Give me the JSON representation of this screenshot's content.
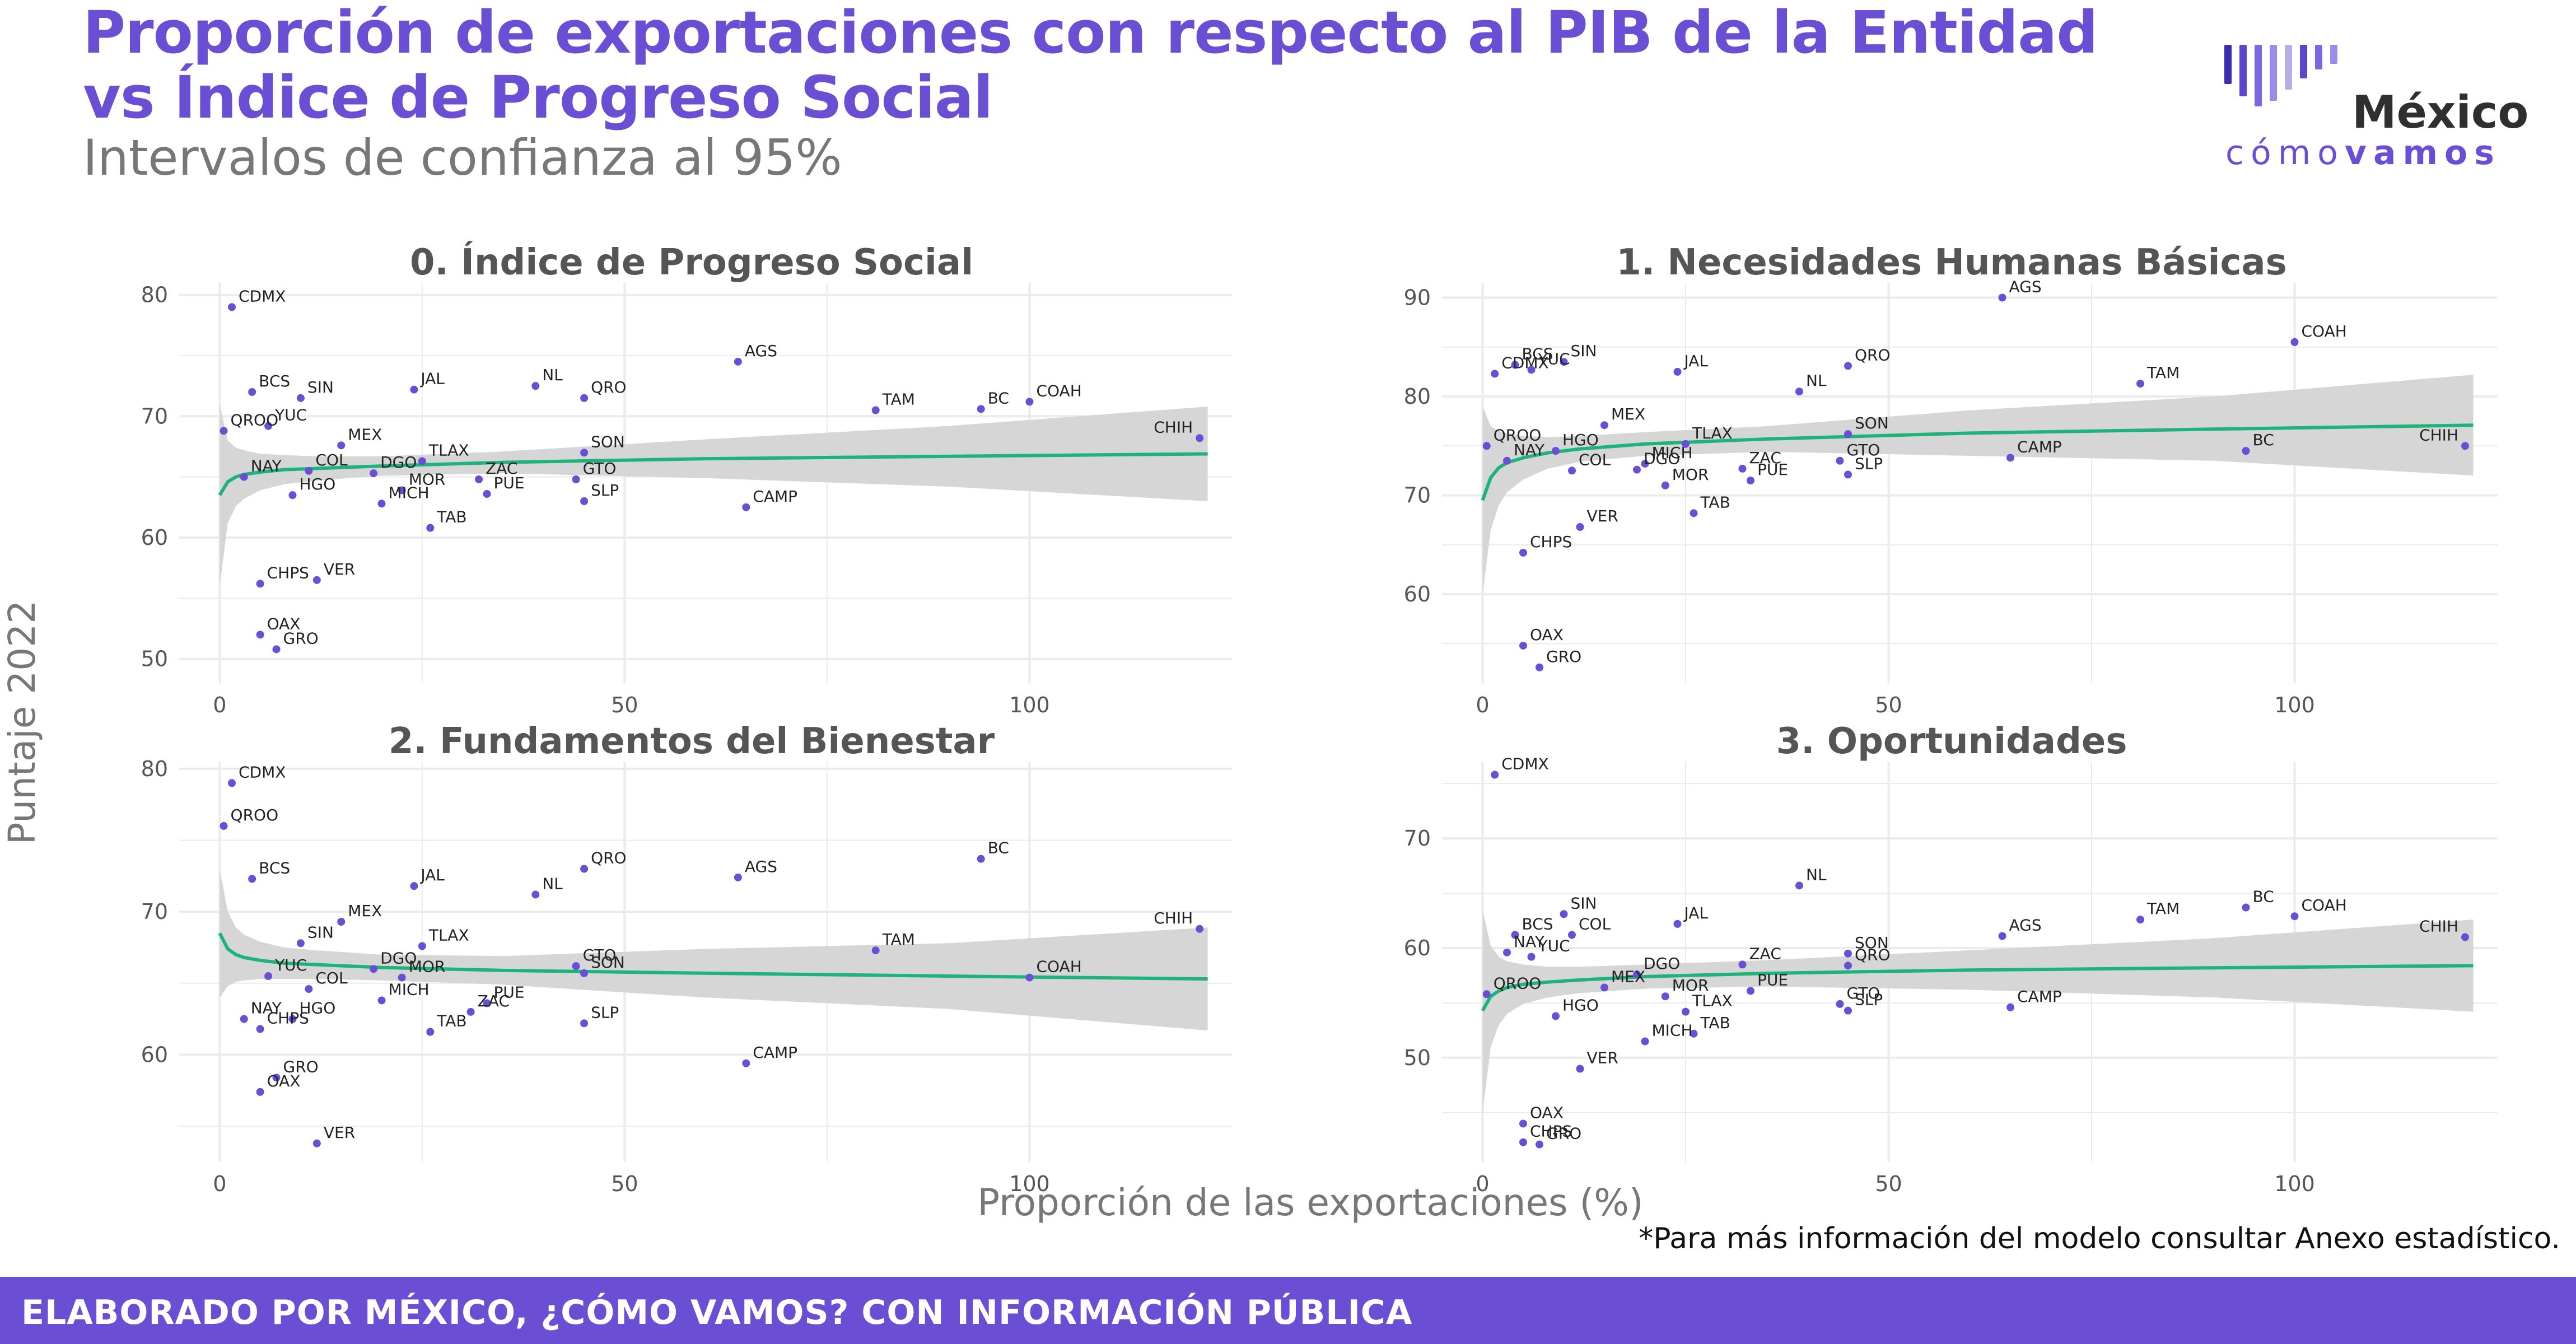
{
  "header": {
    "title_line1": "Proporción de exportaciones con respecto al PIB de la Entidad",
    "title_line2": "vs Índice de Progreso Social",
    "subtitle": "Intervalos de confianza al 95%"
  },
  "logo": {
    "wordmark": "México",
    "sub_light": "cómo",
    "sub_bold": "vamos",
    "colors": [
      "#3b2db0",
      "#5a46cf",
      "#7b67e0",
      "#9c8cea",
      "#b8ace9",
      "#5a46cf",
      "#7b67e0",
      "#9c8cea"
    ]
  },
  "note": "*Para más información del modelo consultar Anexo estadístico.",
  "footer": {
    "text": "ELABORADO POR MÉXICO, ¿CÓMO VAMOS? CON INFORMACIÓN PÚBLICA",
    "color": "#6a4fd4"
  },
  "colors": {
    "point": "#6a4fd4",
    "line": "#1db37a",
    "band": "#d4d4d4",
    "grid": "#ebebeb",
    "title": "#555555",
    "axis_text": "#555555"
  },
  "chart_data": {
    "type": "scatter",
    "xlabel": "Proporción de las exportaciones (%)",
    "ylabel": "Puntaje 2022",
    "panels": [
      {
        "title": "0. Índice de Progreso Social",
        "ylim": [
          48,
          81
        ],
        "xlim": [
          -5,
          125
        ],
        "yticks": [
          50,
          60,
          70,
          80
        ],
        "xticks": [
          0,
          50,
          100
        ],
        "points": [
          {
            "label": "CDMX",
            "x": 1.5,
            "y": 79
          },
          {
            "label": "AGS",
            "x": 64,
            "y": 74.5
          },
          {
            "label": "BCS",
            "x": 4,
            "y": 72
          },
          {
            "label": "SIN",
            "x": 10,
            "y": 71.5
          },
          {
            "label": "JAL",
            "x": 24,
            "y": 72.2
          },
          {
            "label": "NL",
            "x": 39,
            "y": 72.5
          },
          {
            "label": "QRO",
            "x": 45,
            "y": 71.5
          },
          {
            "label": "TAM",
            "x": 81,
            "y": 70.5
          },
          {
            "label": "BC",
            "x": 94,
            "y": 70.6
          },
          {
            "label": "COAH",
            "x": 100,
            "y": 71.2
          },
          {
            "label": "YUC",
            "x": 6,
            "y": 69.2
          },
          {
            "label": "QROO",
            "x": 0.5,
            "y": 68.8
          },
          {
            "label": "MEX",
            "x": 15,
            "y": 67.6
          },
          {
            "label": "CHIH",
            "x": 121,
            "y": 68.2
          },
          {
            "label": "SON",
            "x": 45,
            "y": 67
          },
          {
            "label": "TLAX",
            "x": 25,
            "y": 66.3
          },
          {
            "label": "ZAC",
            "x": 32,
            "y": 64.8
          },
          {
            "label": "COL",
            "x": 11,
            "y": 65.5
          },
          {
            "label": "DGO",
            "x": 19,
            "y": 65.3
          },
          {
            "label": "NAY",
            "x": 3,
            "y": 65
          },
          {
            "label": "MOR",
            "x": 22.5,
            "y": 63.9
          },
          {
            "label": "GTO",
            "x": 44,
            "y": 64.8
          },
          {
            "label": "HGO",
            "x": 9,
            "y": 63.5
          },
          {
            "label": "PUE",
            "x": 33,
            "y": 63.6
          },
          {
            "label": "MICH",
            "x": 20,
            "y": 62.8
          },
          {
            "label": "SLP",
            "x": 45,
            "y": 63
          },
          {
            "label": "CAMP",
            "x": 65,
            "y": 62.5
          },
          {
            "label": "TAB",
            "x": 26,
            "y": 60.8
          },
          {
            "label": "CHPS",
            "x": 5,
            "y": 56.2
          },
          {
            "label": "VER",
            "x": 12,
            "y": 56.5
          },
          {
            "label": "OAX",
            "x": 5,
            "y": 52
          },
          {
            "label": "GRO",
            "x": 7,
            "y": 50.8
          }
        ],
        "fit": {
          "x": [
            0,
            1,
            2,
            3,
            5,
            8,
            12,
            20,
            35,
            60,
            90,
            122
          ],
          "y": [
            63.5,
            64.6,
            65.0,
            65.2,
            65.4,
            65.6,
            65.7,
            65.9,
            66.2,
            66.5,
            66.7,
            66.9
          ],
          "lo": [
            56.0,
            61.2,
            62.6,
            63.2,
            63.9,
            64.4,
            64.7,
            65.1,
            65.3,
            64.9,
            64.2,
            63.0
          ],
          "hi": [
            71.0,
            68.0,
            67.4,
            67.2,
            66.9,
            66.8,
            66.7,
            66.7,
            67.1,
            68.1,
            69.2,
            70.8
          ]
        }
      },
      {
        "title": "1. Necesidades Humanas Básicas",
        "ylim": [
          51,
          91.5
        ],
        "xlim": [
          -5,
          125
        ],
        "yticks": [
          60,
          70,
          80,
          90
        ],
        "xticks": [
          0,
          50,
          100
        ],
        "points": [
          {
            "label": "AGS",
            "x": 64,
            "y": 90
          },
          {
            "label": "COAH",
            "x": 100,
            "y": 85.5
          },
          {
            "label": "BCS",
            "x": 4,
            "y": 83.2
          },
          {
            "label": "SIN",
            "x": 10,
            "y": 83.5
          },
          {
            "label": "YUC",
            "x": 6,
            "y": 82.7
          },
          {
            "label": "CDMX",
            "x": 1.5,
            "y": 82.3
          },
          {
            "label": "JAL",
            "x": 24,
            "y": 82.5
          },
          {
            "label": "QRO",
            "x": 45,
            "y": 83.1
          },
          {
            "label": "NL",
            "x": 39,
            "y": 80.5
          },
          {
            "label": "TAM",
            "x": 81,
            "y": 81.3
          },
          {
            "label": "MEX",
            "x": 15,
            "y": 77.1
          },
          {
            "label": "QROO",
            "x": 0.5,
            "y": 75
          },
          {
            "label": "SON",
            "x": 45,
            "y": 76.2
          },
          {
            "label": "CHIH",
            "x": 121,
            "y": 75
          },
          {
            "label": "TLAX",
            "x": 25,
            "y": 75.2
          },
          {
            "label": "HGO",
            "x": 9,
            "y": 74.5
          },
          {
            "label": "MICH",
            "x": 20,
            "y": 73.2
          },
          {
            "label": "NAY",
            "x": 3,
            "y": 73.5
          },
          {
            "label": "GTO",
            "x": 44,
            "y": 73.5
          },
          {
            "label": "BC",
            "x": 94,
            "y": 74.5
          },
          {
            "label": "ZAC",
            "x": 32,
            "y": 72.7
          },
          {
            "label": "DGO",
            "x": 19,
            "y": 72.6
          },
          {
            "label": "CAMP",
            "x": 65,
            "y": 73.8
          },
          {
            "label": "COL",
            "x": 11,
            "y": 72.5
          },
          {
            "label": "SLP",
            "x": 45,
            "y": 72.1
          },
          {
            "label": "MOR",
            "x": 22.5,
            "y": 71
          },
          {
            "label": "PUE",
            "x": 33,
            "y": 71.5
          },
          {
            "label": "TAB",
            "x": 26,
            "y": 68.2
          },
          {
            "label": "VER",
            "x": 12,
            "y": 66.8
          },
          {
            "label": "CHPS",
            "x": 5,
            "y": 64.2
          },
          {
            "label": "OAX",
            "x": 5,
            "y": 54.8
          },
          {
            "label": "GRO",
            "x": 7,
            "y": 52.6
          }
        ],
        "fit": {
          "x": [
            0,
            1,
            2,
            3,
            5,
            8,
            12,
            20,
            35,
            60,
            90,
            122
          ],
          "y": [
            69.5,
            71.8,
            72.8,
            73.3,
            73.8,
            74.3,
            74.7,
            75.2,
            75.7,
            76.3,
            76.7,
            77.1
          ],
          "lo": [
            60.0,
            66.5,
            69.0,
            70.3,
            71.6,
            72.7,
            73.4,
            74.0,
            74.4,
            74.0,
            73.5,
            72.0
          ],
          "hi": [
            79.0,
            77.0,
            76.5,
            76.3,
            76.0,
            75.9,
            76.0,
            76.4,
            77.0,
            78.6,
            80.0,
            82.2
          ]
        }
      },
      {
        "title": "2. Fundamentos del Bienestar",
        "ylim": [
          52.5,
          80.5
        ],
        "xlim": [
          -5,
          125
        ],
        "yticks": [
          60,
          70,
          80
        ],
        "xticks": [
          0,
          50,
          100
        ],
        "points": [
          {
            "label": "CDMX",
            "x": 1.5,
            "y": 79
          },
          {
            "label": "QROO",
            "x": 0.5,
            "y": 76
          },
          {
            "label": "BC",
            "x": 94,
            "y": 73.7
          },
          {
            "label": "QRO",
            "x": 45,
            "y": 73
          },
          {
            "label": "BCS",
            "x": 4,
            "y": 72.3
          },
          {
            "label": "AGS",
            "x": 64,
            "y": 72.4
          },
          {
            "label": "JAL",
            "x": 24,
            "y": 71.8
          },
          {
            "label": "NL",
            "x": 39,
            "y": 71.2
          },
          {
            "label": "MEX",
            "x": 15,
            "y": 69.3
          },
          {
            "label": "CHIH",
            "x": 121,
            "y": 68.8
          },
          {
            "label": "TLAX",
            "x": 25,
            "y": 67.6
          },
          {
            "label": "SIN",
            "x": 10,
            "y": 67.8
          },
          {
            "label": "TAM",
            "x": 81,
            "y": 67.3
          },
          {
            "label": "GTO",
            "x": 44,
            "y": 66.2
          },
          {
            "label": "DGO",
            "x": 19,
            "y": 66
          },
          {
            "label": "YUC",
            "x": 6,
            "y": 65.5
          },
          {
            "label": "MOR",
            "x": 22.5,
            "y": 65.4
          },
          {
            "label": "SON",
            "x": 45,
            "y": 65.7
          },
          {
            "label": "COL",
            "x": 11,
            "y": 64.6
          },
          {
            "label": "COAH",
            "x": 100,
            "y": 65.4
          },
          {
            "label": "PUE",
            "x": 33,
            "y": 63.6
          },
          {
            "label": "MICH",
            "x": 20,
            "y": 63.8
          },
          {
            "label": "ZAC",
            "x": 31,
            "y": 63
          },
          {
            "label": "HGO",
            "x": 9,
            "y": 62.5
          },
          {
            "label": "NAY",
            "x": 3,
            "y": 62.5
          },
          {
            "label": "SLP",
            "x": 45,
            "y": 62.2
          },
          {
            "label": "TAB",
            "x": 26,
            "y": 61.6
          },
          {
            "label": "CHPS",
            "x": 5,
            "y": 61.8
          },
          {
            "label": "CAMP",
            "x": 65,
            "y": 59.4
          },
          {
            "label": "GRO",
            "x": 7,
            "y": 58.4
          },
          {
            "label": "OAX",
            "x": 5,
            "y": 57.4
          },
          {
            "label": "VER",
            "x": 12,
            "y": 53.8
          }
        ],
        "fit": {
          "x": [
            0,
            1,
            2,
            3,
            5,
            8,
            12,
            20,
            35,
            60,
            90,
            122
          ],
          "y": [
            68.5,
            67.4,
            67.0,
            66.8,
            66.6,
            66.4,
            66.3,
            66.1,
            65.9,
            65.7,
            65.5,
            65.3
          ],
          "lo": [
            64.0,
            64.8,
            65.1,
            65.2,
            65.3,
            65.3,
            65.3,
            65.2,
            64.9,
            64.0,
            63.2,
            61.7
          ],
          "hi": [
            73.0,
            70.0,
            68.9,
            68.4,
            67.9,
            67.5,
            67.3,
            67.0,
            66.9,
            67.4,
            67.8,
            68.9
          ]
        }
      },
      {
        "title": "3. Oportunidades",
        "ylim": [
          40.5,
          77
        ],
        "xlim": [
          -5,
          125
        ],
        "yticks": [
          50,
          60,
          70
        ],
        "xticks": [
          0,
          50,
          100
        ],
        "points": [
          {
            "label": "CDMX",
            "x": 1.5,
            "y": 75.8
          },
          {
            "label": "NL",
            "x": 39,
            "y": 65.7
          },
          {
            "label": "BC",
            "x": 94,
            "y": 63.7
          },
          {
            "label": "SIN",
            "x": 10,
            "y": 63.1
          },
          {
            "label": "COAH",
            "x": 100,
            "y": 62.9
          },
          {
            "label": "TAM",
            "x": 81,
            "y": 62.6
          },
          {
            "label": "JAL",
            "x": 24,
            "y": 62.2
          },
          {
            "label": "AGS",
            "x": 64,
            "y": 61.1
          },
          {
            "label": "CHIH",
            "x": 121,
            "y": 61
          },
          {
            "label": "BCS",
            "x": 4,
            "y": 61.2
          },
          {
            "label": "COL",
            "x": 11,
            "y": 61.2
          },
          {
            "label": "NAY",
            "x": 3,
            "y": 59.6
          },
          {
            "label": "YUC",
            "x": 6,
            "y": 59.2
          },
          {
            "label": "SON",
            "x": 45,
            "y": 59.5
          },
          {
            "label": "DGO",
            "x": 19,
            "y": 57.6
          },
          {
            "label": "ZAC",
            "x": 32,
            "y": 58.5
          },
          {
            "label": "QRO",
            "x": 45,
            "y": 58.4
          },
          {
            "label": "QROO",
            "x": 0.5,
            "y": 55.8
          },
          {
            "label": "MEX",
            "x": 15,
            "y": 56.4
          },
          {
            "label": "MOR",
            "x": 22.5,
            "y": 55.6
          },
          {
            "label": "PUE",
            "x": 33,
            "y": 56.1
          },
          {
            "label": "GTO",
            "x": 44,
            "y": 54.9
          },
          {
            "label": "SLP",
            "x": 45,
            "y": 54.3
          },
          {
            "label": "CAMP",
            "x": 65,
            "y": 54.6
          },
          {
            "label": "HGO",
            "x": 9,
            "y": 53.8
          },
          {
            "label": "TLAX",
            "x": 25,
            "y": 54.2
          },
          {
            "label": "TAB",
            "x": 26,
            "y": 52.2
          },
          {
            "label": "MICH",
            "x": 20,
            "y": 51.5
          },
          {
            "label": "VER",
            "x": 12,
            "y": 49
          },
          {
            "label": "OAX",
            "x": 5,
            "y": 44
          },
          {
            "label": "CHPS",
            "x": 5,
            "y": 42.3
          },
          {
            "label": "GRO",
            "x": 7,
            "y": 42.1
          }
        ],
        "fit": {
          "x": [
            0,
            1,
            2,
            3,
            5,
            8,
            12,
            20,
            35,
            60,
            90,
            122
          ],
          "y": [
            54.3,
            55.6,
            56.1,
            56.4,
            56.7,
            56.9,
            57.1,
            57.4,
            57.7,
            58.0,
            58.2,
            58.4
          ],
          "lo": [
            45.0,
            51.0,
            53.0,
            54.0,
            54.9,
            55.5,
            55.9,
            56.3,
            56.5,
            56.2,
            55.5,
            54.2
          ],
          "hi": [
            63.5,
            60.2,
            59.2,
            58.8,
            58.5,
            58.3,
            58.3,
            58.5,
            58.9,
            59.8,
            60.9,
            62.6
          ]
        }
      }
    ]
  }
}
